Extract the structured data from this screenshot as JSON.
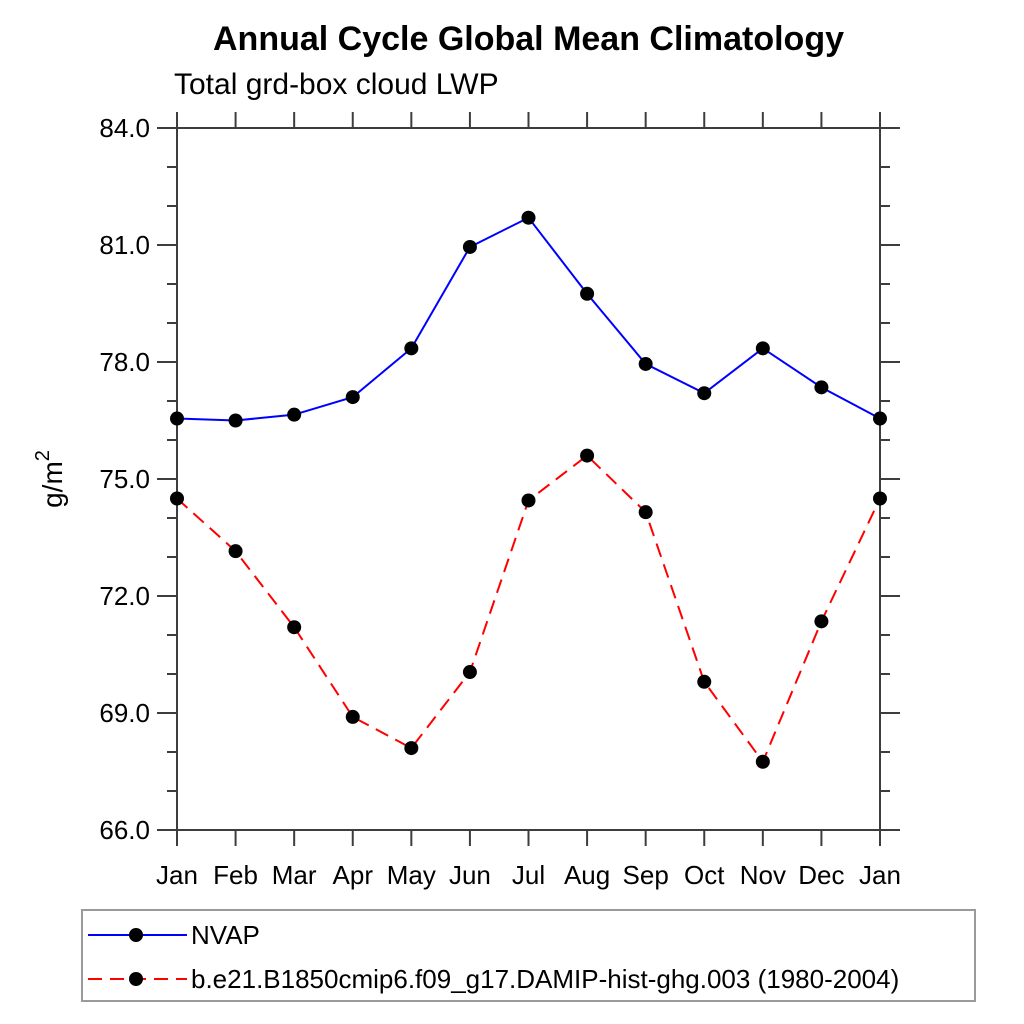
{
  "chart_data": {
    "type": "line",
    "title": "Annual Cycle Global Mean Climatology",
    "subtitle": "Total grd-box cloud LWP",
    "ylabel": "g/m²",
    "categories": [
      "Jan",
      "Feb",
      "Mar",
      "Apr",
      "May",
      "Jun",
      "Jul",
      "Aug",
      "Sep",
      "Oct",
      "Nov",
      "Dec",
      "Jan"
    ],
    "ylim": [
      66.0,
      84.0
    ],
    "ytick_values": [
      84.0,
      81.0,
      78.0,
      75.0,
      72.0,
      69.0,
      66.0
    ],
    "ytick_labels": [
      "84.0",
      "81.0",
      "78.0",
      "75.0",
      "72.0",
      "69.0",
      "66.0"
    ],
    "ytick_minor_interval": 1.0,
    "grid": false,
    "legend_position": "bottom",
    "series": [
      {
        "name": "NVAP",
        "color": "#0000ff",
        "line_style": "solid",
        "marker": "circle",
        "marker_color": "#000000",
        "values": [
          76.55,
          76.5,
          76.65,
          77.1,
          78.35,
          80.95,
          81.7,
          79.75,
          77.95,
          77.2,
          78.35,
          77.35,
          76.55
        ]
      },
      {
        "name": "b.e21.B1850cmip6.f09_g17.DAMIP-hist-ghg.003 (1980-2004)",
        "color": "#ff0000",
        "line_style": "dashed",
        "marker": "circle",
        "marker_color": "#000000",
        "values": [
          74.5,
          73.15,
          71.2,
          68.9,
          68.1,
          70.05,
          74.45,
          75.6,
          74.15,
          69.8,
          67.75,
          71.35,
          74.5
        ]
      }
    ]
  },
  "colors": {
    "axis": "#3d3d3d",
    "text": "#000000",
    "background": "#ffffff",
    "legend_border": "#9a9a9a"
  }
}
